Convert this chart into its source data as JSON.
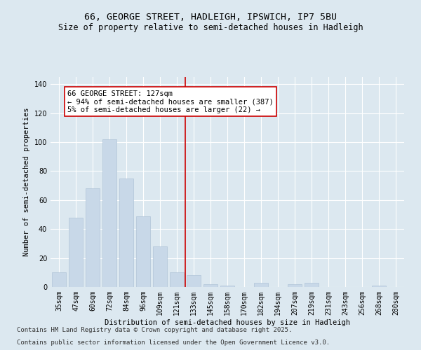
{
  "title1": "66, GEORGE STREET, HADLEIGH, IPSWICH, IP7 5BU",
  "title2": "Size of property relative to semi-detached houses in Hadleigh",
  "xlabel": "Distribution of semi-detached houses by size in Hadleigh",
  "ylabel": "Number of semi-detached properties",
  "categories": [
    "35sqm",
    "47sqm",
    "60sqm",
    "72sqm",
    "84sqm",
    "96sqm",
    "109sqm",
    "121sqm",
    "133sqm",
    "145sqm",
    "158sqm",
    "170sqm",
    "182sqm",
    "194sqm",
    "207sqm",
    "219sqm",
    "231sqm",
    "243sqm",
    "256sqm",
    "268sqm",
    "280sqm"
  ],
  "values": [
    10,
    48,
    68,
    102,
    75,
    49,
    28,
    10,
    8,
    2,
    1,
    0,
    3,
    0,
    2,
    3,
    0,
    0,
    0,
    1,
    0
  ],
  "bar_color": "#c8d8e8",
  "bar_edgecolor": "#b0c4d8",
  "vline_color": "#cc0000",
  "annotation_text": "66 GEORGE STREET: 127sqm\n← 94% of semi-detached houses are smaller (387)\n5% of semi-detached houses are larger (22) →",
  "annotation_box_edgecolor": "#cc0000",
  "ylim": [
    0,
    145
  ],
  "yticks": [
    0,
    20,
    40,
    60,
    80,
    100,
    120,
    140
  ],
  "footer1": "Contains HM Land Registry data © Crown copyright and database right 2025.",
  "footer2": "Contains public sector information licensed under the Open Government Licence v3.0.",
  "bg_color": "#dce8f0",
  "plot_bg_color": "#dce8f0",
  "title_fontsize": 9.5,
  "subtitle_fontsize": 8.5,
  "axis_label_fontsize": 7.5,
  "tick_fontsize": 7,
  "footer_fontsize": 6.5,
  "annotation_fontsize": 7.5
}
